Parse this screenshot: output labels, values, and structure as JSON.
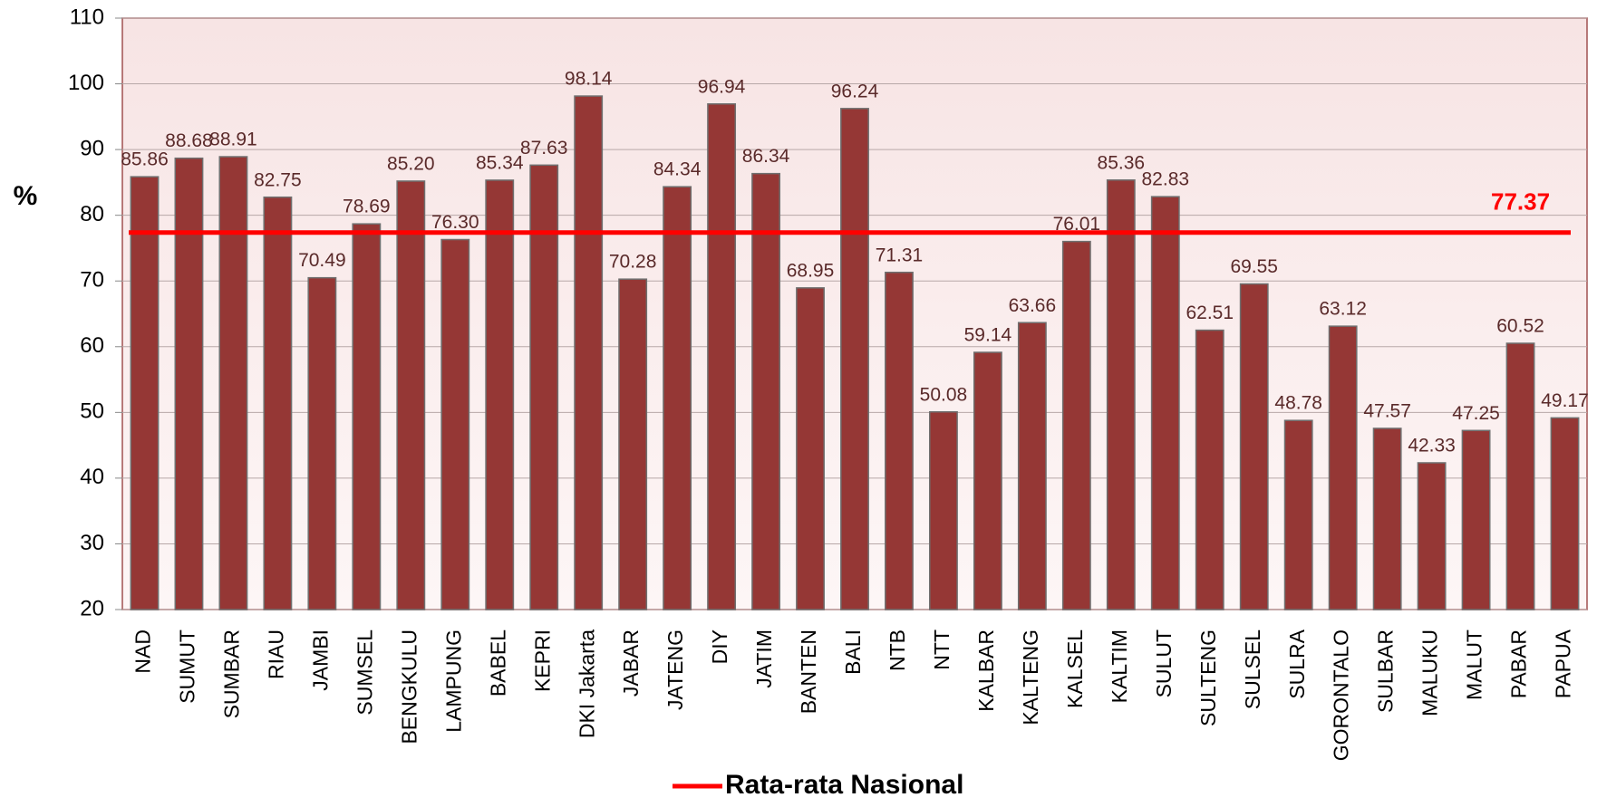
{
  "chart_data": {
    "type": "bar",
    "y_label": "%",
    "categories": [
      "NAD",
      "SUMUT",
      "SUMBAR",
      "RIAU",
      "JAMBI",
      "SUMSEL",
      "BENGKULU",
      "LAMPUNG",
      "BABEL",
      "KEPRI",
      "DKI Jakarta",
      "JABAR",
      "JATENG",
      "DIY",
      "JATIM",
      "BANTEN",
      "BALI",
      "NTB",
      "NTT",
      "KALBAR",
      "KALTENG",
      "KALSEL",
      "KALTIM",
      "SULUT",
      "SULTENG",
      "SULSEL",
      "SULRA",
      "GORONTALO",
      "SULBAR",
      "MALUKU",
      "MALUT",
      "PABAR",
      "PAPUA"
    ],
    "values": [
      85.86,
      88.68,
      88.91,
      82.75,
      70.49,
      78.69,
      85.2,
      76.3,
      85.34,
      87.63,
      98.14,
      70.28,
      84.34,
      96.94,
      86.34,
      68.95,
      96.24,
      71.31,
      50.08,
      59.14,
      63.66,
      76.01,
      85.36,
      82.83,
      62.51,
      69.55,
      48.78,
      63.12,
      47.57,
      42.33,
      47.25,
      60.52,
      49.17
    ],
    "value_labels": [
      "85.86",
      "88.68",
      "88.91",
      "82.75",
      "70.49",
      "78.69",
      "85.20",
      "76.30",
      "85.34",
      "87.63",
      "98.14",
      "70.28",
      "84.34",
      "96.94",
      "86.34",
      "68.95",
      "96.24",
      "71.31",
      "50.08",
      "59.14",
      "63.66",
      "76.01",
      "85.36",
      "82.83",
      "62.51",
      "69.55",
      "48.78",
      "63.12",
      "47.57",
      "42.33",
      "47.25",
      "60.52",
      "49.17"
    ],
    "color": "#953735",
    "reference_line": {
      "name": "Rata-rata Nasional",
      "value": 77.37,
      "color": "#ff0000"
    },
    "ylim": [
      20,
      110
    ],
    "yticks": [
      20,
      30,
      40,
      50,
      60,
      70,
      80,
      90,
      100,
      110
    ],
    "grid": true
  }
}
